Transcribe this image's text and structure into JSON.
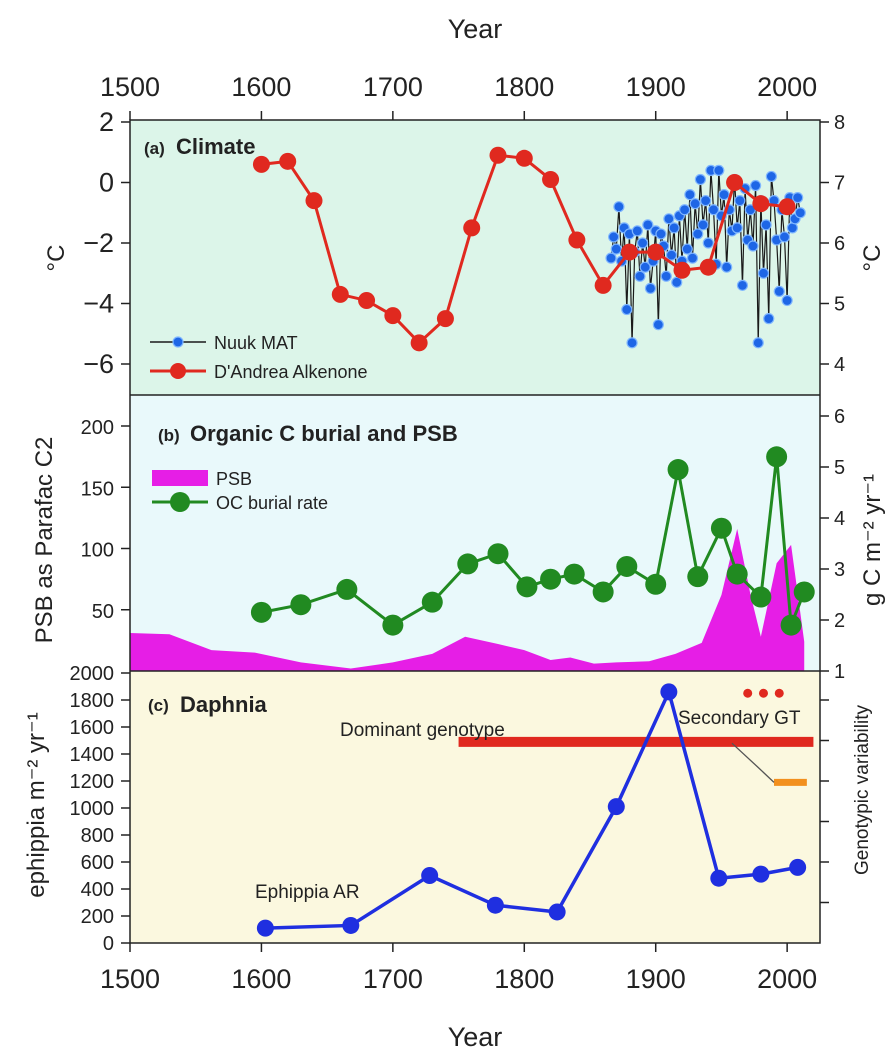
{
  "x_axis_title_top": "Year",
  "x_axis_title_bottom": "Year",
  "x_ticks": [
    1500,
    1600,
    1700,
    1800,
    1900,
    2000
  ],
  "colors": {
    "panel_a_bg": "#dcf5e9",
    "panel_b_bg": "#e9f9fb",
    "panel_c_bg": "#fbf8df",
    "nuuk": "#1e66e6",
    "nuuk_line": "#1a1a1a",
    "alkenone": "#e0291f",
    "psb": "#e61ee6",
    "oc": "#218a21",
    "ephippia": "#1f2fe0",
    "dominant": "#e0291f",
    "secondary": "#e0291f",
    "secondary_orange": "#f2901e"
  },
  "panel_a": {
    "tag": "(a)",
    "title": "Climate",
    "ylabel_left": "°C",
    "ylabel_right": "°C",
    "left_ticks": [
      "2",
      "0",
      "−2",
      "−4",
      "−6"
    ],
    "right_ticks": [
      "8",
      "7",
      "6",
      "5",
      "4"
    ],
    "legend": {
      "nuuk": "Nuuk MAT",
      "alkenone": "D'Andrea Alkenone"
    }
  },
  "panel_b": {
    "tag": "(b)",
    "title": "Organic C burial and PSB",
    "ylabel_left": "PSB as Parafac C2",
    "ylabel_right": "g C m⁻² yr⁻¹",
    "left_ticks": [
      "200",
      "150",
      "100",
      "50"
    ],
    "right_ticks": [
      "6",
      "5",
      "4",
      "3",
      "2",
      "1"
    ],
    "legend": {
      "psb": "PSB",
      "oc": "OC burial rate"
    }
  },
  "panel_c": {
    "tag": "(c)",
    "title": "Daphnia",
    "ylabel_left": "ephippia m⁻² yr⁻¹",
    "ylabel_right": "Genotypic variability",
    "left_ticks": [
      "2000",
      "1800",
      "1600",
      "1400",
      "1200",
      "1000",
      "800",
      "600",
      "400",
      "200",
      "0"
    ],
    "annotations": {
      "dominant": "Dominant genotype",
      "secondary": "Secondary GT",
      "ephippia": "Ephippia AR"
    }
  },
  "chart_data": [
    {
      "type": "line",
      "title": "Climate",
      "xlabel": "Year",
      "ylabel": "°C",
      "xlim": [
        1500,
        2025
      ],
      "ylim": [
        -7,
        2
      ],
      "y2lim": [
        3.5,
        8
      ],
      "series": [
        {
          "name": "D'Andrea Alkenone",
          "axis": "right",
          "x": [
            1600,
            1620,
            1640,
            1660,
            1680,
            1700,
            1720,
            1740,
            1760,
            1780,
            1800,
            1820,
            1840,
            1860,
            1880,
            1900,
            1920,
            1940,
            1960,
            1980,
            2000
          ],
          "y": [
            7.3,
            7.35,
            6.7,
            5.15,
            5.05,
            4.8,
            4.35,
            4.75,
            6.25,
            7.45,
            7.4,
            7.05,
            6.05,
            5.3,
            5.85,
            5.85,
            5.55,
            5.6,
            7.0,
            6.65,
            6.6
          ]
        },
        {
          "name": "Nuuk MAT",
          "axis": "left",
          "x": [
            1866,
            1868,
            1870,
            1872,
            1874,
            1876,
            1878,
            1880,
            1882,
            1884,
            1886,
            1888,
            1890,
            1892,
            1894,
            1896,
            1898,
            1900,
            1902,
            1904,
            1906,
            1908,
            1910,
            1912,
            1914,
            1916,
            1918,
            1920,
            1922,
            1924,
            1926,
            1928,
            1930,
            1932,
            1934,
            1936,
            1938,
            1940,
            1942,
            1944,
            1946,
            1948,
            1950,
            1952,
            1954,
            1956,
            1958,
            1960,
            1962,
            1964,
            1966,
            1968,
            1970,
            1972,
            1974,
            1976,
            1978,
            1980,
            1982,
            1984,
            1986,
            1988,
            1990,
            1992,
            1994,
            1996,
            1998,
            2000,
            2002,
            2004,
            2006,
            2008,
            2010
          ],
          "y": [
            -2.5,
            -1.8,
            -2.2,
            -0.8,
            -2.6,
            -1.5,
            -4.2,
            -1.7,
            -5.3,
            -2.3,
            -1.6,
            -3.1,
            -2.0,
            -2.8,
            -1.4,
            -3.5,
            -2.6,
            -1.6,
            -4.7,
            -1.7,
            -2.1,
            -3.1,
            -1.2,
            -2.4,
            -1.5,
            -3.3,
            -1.1,
            -2.6,
            -0.9,
            -2.2,
            -0.4,
            -2.5,
            -0.7,
            -1.7,
            0.1,
            -1.4,
            -0.6,
            -2.0,
            0.4,
            -0.9,
            -2.7,
            0.4,
            -1.1,
            -0.4,
            -2.8,
            -0.9,
            -1.6,
            0.1,
            -1.5,
            -0.6,
            -3.4,
            -0.2,
            -1.9,
            -0.9,
            -2.1,
            -0.1,
            -5.3,
            -0.6,
            -3.0,
            -1.4,
            -4.5,
            0.2,
            -0.6,
            -1.9,
            -3.6,
            -0.9,
            -1.8,
            -3.9,
            -0.5,
            -1.5,
            -1.2,
            -0.5,
            -1.0
          ]
        }
      ]
    },
    {
      "type": "area",
      "title": "Organic C burial and PSB",
      "xlabel": "Year",
      "ylabel": "PSB as Parafac C2",
      "xlim": [
        1500,
        2025
      ],
      "ylim": [
        0,
        220
      ],
      "y2lim": [
        1,
        6.2
      ],
      "series": [
        {
          "name": "PSB",
          "axis": "left",
          "x": [
            1500,
            1530,
            1562,
            1595,
            1630,
            1668,
            1700,
            1730,
            1755,
            1780,
            1800,
            1820,
            1835,
            1853,
            1870,
            1895,
            1915,
            1935,
            1950,
            1962,
            1972,
            1980,
            1992,
            2003,
            2013
          ],
          "y": [
            31,
            30,
            17,
            15,
            7,
            2,
            7,
            14,
            28,
            22,
            17,
            9,
            11,
            6,
            7,
            8,
            14,
            23,
            62,
            116,
            63,
            28,
            88,
            103,
            24
          ]
        },
        {
          "name": "OC burial rate",
          "axis": "right",
          "x": [
            1600,
            1630,
            1665,
            1700,
            1730,
            1757,
            1780,
            1802,
            1820,
            1838,
            1860,
            1878,
            1900,
            1917,
            1932,
            1950,
            1962,
            1980,
            1992,
            2003,
            2013
          ],
          "y": [
            2.15,
            2.3,
            2.6,
            1.9,
            2.35,
            3.1,
            3.3,
            2.65,
            2.8,
            2.9,
            2.55,
            3.05,
            2.7,
            4.95,
            2.85,
            3.8,
            2.9,
            2.45,
            5.2,
            1.9,
            2.55
          ]
        }
      ]
    },
    {
      "type": "line",
      "title": "Daphnia",
      "xlabel": "Year",
      "ylabel": "ephippia m⁻² yr⁻¹",
      "xlim": [
        1500,
        2025
      ],
      "ylim": [
        0,
        2000
      ],
      "series": [
        {
          "name": "Ephippia AR",
          "x": [
            1603,
            1668,
            1728,
            1778,
            1825,
            1870,
            1910,
            1948,
            1980,
            2008
          ],
          "y": [
            110,
            130,
            500,
            280,
            230,
            1010,
            1860,
            480,
            510,
            560
          ]
        }
      ],
      "segments": [
        {
          "name": "Dominant genotype",
          "x": [
            1750,
            2020
          ],
          "y": 1490
        },
        {
          "name": "Secondary GT",
          "x": [
            1990,
            2015
          ],
          "y": 1190
        }
      ],
      "points": [
        {
          "name": "Secondary GT",
          "x": [
            1970,
            1982,
            1994
          ],
          "y": 1850
        }
      ]
    }
  ]
}
